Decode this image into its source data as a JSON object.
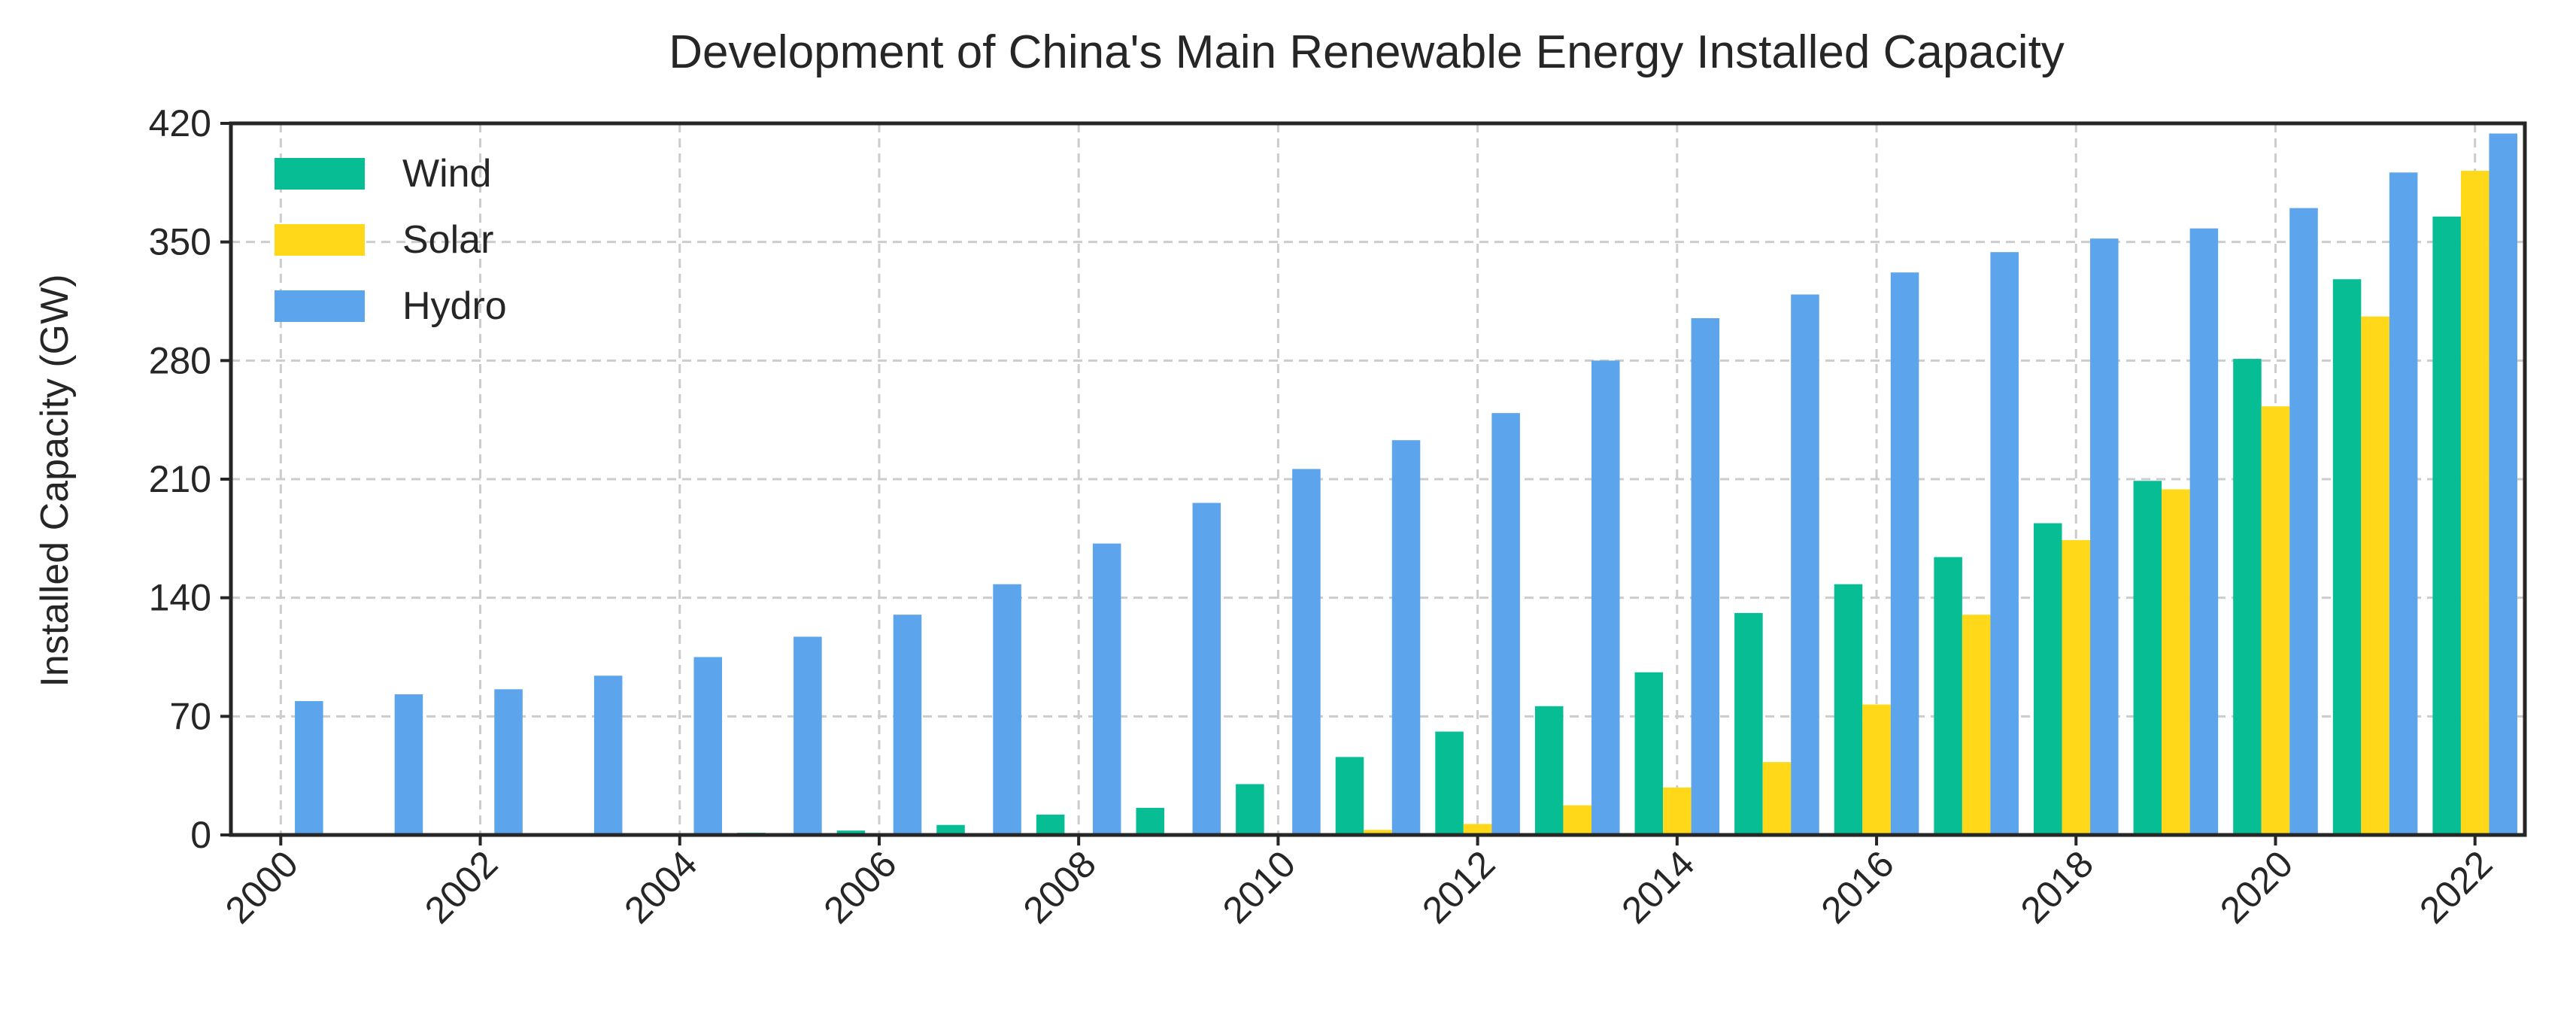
{
  "chart_data": {
    "type": "bar",
    "title": "Development of China's Main Renewable Energy Installed Capacity",
    "xlabel": "",
    "ylabel": "Installed Capacity (GW)",
    "ylim": [
      0,
      420
    ],
    "yticks": [
      0,
      70,
      140,
      210,
      280,
      350,
      420
    ],
    "xlim": [
      1999.5,
      2022.5
    ],
    "xticks": [
      "2000",
      "2002",
      "2004",
      "2006",
      "2008",
      "2010",
      "2012",
      "2014",
      "2016",
      "2018",
      "2020",
      "2022"
    ],
    "grid": true,
    "legend_position": "top-left",
    "categories": [
      2000,
      2001,
      2002,
      2003,
      2004,
      2005,
      2006,
      2007,
      2008,
      2009,
      2010,
      2011,
      2012,
      2013,
      2014,
      2015,
      2016,
      2017,
      2018,
      2019,
      2020,
      2021,
      2022
    ],
    "series": [
      {
        "name": "Wind",
        "color": "#06BD94",
        "values": [
          0.3,
          0.4,
          0.5,
          0.6,
          0.8,
          1.3,
          2.6,
          5.9,
          12.0,
          16.0,
          30.0,
          46.0,
          61.0,
          76.0,
          96.0,
          131.0,
          148.0,
          164.0,
          184.0,
          209.0,
          281.0,
          328.0,
          365.0
        ]
      },
      {
        "name": "Solar",
        "color": "#FFD81A",
        "values": [
          0.0,
          0.0,
          0.0,
          0.0,
          0.1,
          0.1,
          0.1,
          0.1,
          0.1,
          0.3,
          0.8,
          3.0,
          6.5,
          17.5,
          28.0,
          43.0,
          77.0,
          130.0,
          174.0,
          204.0,
          253.0,
          306.0,
          392.0
        ]
      },
      {
        "name": "Hydro",
        "color": "#5CA4EB",
        "values": [
          79.0,
          83.0,
          86.0,
          94.0,
          105.0,
          117.0,
          130.0,
          148.0,
          172.0,
          196.0,
          216.0,
          233.0,
          249.0,
          280.0,
          305.0,
          319.0,
          332.0,
          344.0,
          352.0,
          358.0,
          370.0,
          391.0,
          414.0
        ]
      }
    ]
  }
}
